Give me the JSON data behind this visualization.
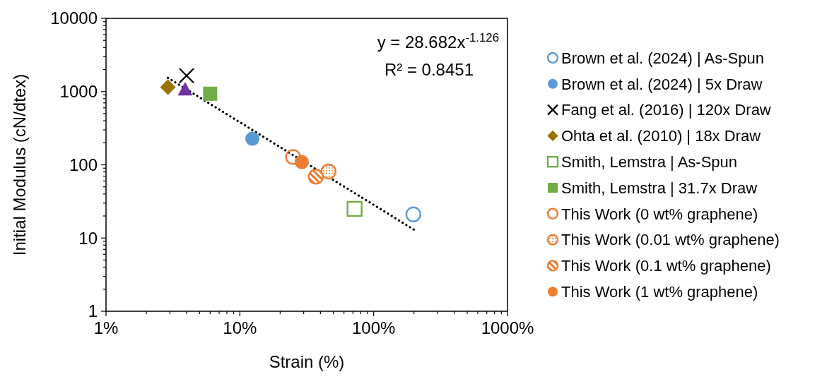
{
  "chart_data": {
    "type": "scatter",
    "xlabel": "Strain (%)",
    "ylabel": "Initial Modulus (cN/dtex)",
    "log": "xy",
    "grid": false,
    "legend": "right",
    "xlim": [
      1,
      1000
    ],
    "ylim": [
      1,
      10000
    ],
    "xticks": [
      {
        "value": 1,
        "label": "1%"
      },
      {
        "value": 2,
        "label": null
      },
      {
        "value": 3,
        "label": null
      },
      {
        "value": 4,
        "label": null
      },
      {
        "value": 5,
        "label": null
      },
      {
        "value": 6,
        "label": null
      },
      {
        "value": 7,
        "label": null
      },
      {
        "value": 8,
        "label": null
      },
      {
        "value": 9,
        "label": null
      },
      {
        "value": 10,
        "label": "10%"
      },
      {
        "value": 20,
        "label": null
      },
      {
        "value": 30,
        "label": null
      },
      {
        "value": 40,
        "label": null
      },
      {
        "value": 50,
        "label": null
      },
      {
        "value": 60,
        "label": null
      },
      {
        "value": 70,
        "label": null
      },
      {
        "value": 80,
        "label": null
      },
      {
        "value": 90,
        "label": null
      },
      {
        "value": 100,
        "label": "100%"
      },
      {
        "value": 200,
        "label": null
      },
      {
        "value": 300,
        "label": null
      },
      {
        "value": 400,
        "label": null
      },
      {
        "value": 500,
        "label": null
      },
      {
        "value": 600,
        "label": null
      },
      {
        "value": 700,
        "label": null
      },
      {
        "value": 800,
        "label": null
      },
      {
        "value": 900,
        "label": null
      },
      {
        "value": 1000,
        "label": "1000%"
      }
    ],
    "yticks": [
      1,
      {
        "value": 2,
        "label": null
      },
      {
        "value": 3,
        "label": null
      },
      {
        "value": 4,
        "label": null
      },
      {
        "value": 5,
        "label": null
      },
      {
        "value": 6,
        "label": null
      },
      {
        "value": 7,
        "label": null
      },
      {
        "value": 8,
        "label": null
      },
      {
        "value": 9,
        "label": null
      },
      10,
      {
        "value": 20,
        "label": null
      },
      {
        "value": 30,
        "label": null
      },
      {
        "value": 40,
        "label": null
      },
      {
        "value": 50,
        "label": null
      },
      {
        "value": 60,
        "label": null
      },
      {
        "value": 70,
        "label": null
      },
      {
        "value": 80,
        "label": null
      },
      {
        "value": 90,
        "label": null
      },
      100,
      {
        "value": 200,
        "label": null
      },
      {
        "value": 300,
        "label": null
      },
      {
        "value": 400,
        "label": null
      },
      {
        "value": 500,
        "label": null
      },
      {
        "value": 600,
        "label": null
      },
      {
        "value": 700,
        "label": null
      },
      {
        "value": 800,
        "label": null
      },
      {
        "value": 900,
        "label": null
      },
      1000,
      {
        "value": 2000,
        "label": null
      },
      {
        "value": 3000,
        "label": null
      },
      {
        "value": 4000,
        "label": null
      },
      {
        "value": 5000,
        "label": null
      },
      {
        "value": 6000,
        "label": null
      },
      {
        "value": 7000,
        "label": null
      },
      {
        "value": 8000,
        "label": null
      },
      {
        "value": 9000,
        "label": null
      },
      10000
    ],
    "annotations": [
      "y = 28.682x$^{-1.126}$",
      "R² = 0.8451"
    ],
    "series": [
      {
        "type": "line",
        "color": "#000000",
        "line_style": "dotted",
        "x": [
          2.9,
          200
        ],
        "values": [
          1540,
          13
        ]
      },
      {
        "color": "#7030a0",
        "marker": "triangle",
        "x": [
          3.9
        ],
        "values": [
          1050
        ]
      },
      {
        "name": "Brown et al. (2024) | As-Spun",
        "color": "#5b9bd5",
        "marker": "circle",
        "x": [
          198
        ],
        "values": [
          21
        ]
      },
      {
        "name": "Brown et al. (2024) | 5x Draw",
        "color": "#5b9bd5",
        "marker": "circle",
        "x": [
          12.4
        ],
        "values": [
          227
        ]
      },
      {
        "name": "Fang et al. (2016) | 120x Draw",
        "color": "#000000",
        "marker": "cross",
        "x": [
          4.0
        ],
        "values": [
          1650
        ]
      },
      {
        "name": "Ohta et al. (2010) | 18x Draw",
        "color": "#997300",
        "marker": "diamond",
        "x": [
          2.9
        ],
        "values": [
          1150
        ]
      },
      {
        "name": "Smith, Lemstra | As-Spun",
        "color": "#70ad47",
        "marker": "square",
        "x": [
          72
        ],
        "values": [
          25
        ]
      },
      {
        "name": "Smith, Lemstra | 31.7x Draw",
        "color": "#70ad47",
        "marker": "square",
        "x": [
          6.0
        ],
        "values": [
          935
        ]
      },
      {
        "name": "This Work (0 wt% graphene)",
        "color": "#ed7d31",
        "marker": "circle",
        "x": [
          25
        ],
        "values": [
          128
        ]
      },
      {
        "name": "This Work (0.01 wt% graphene)",
        "color": "#ed7d31",
        "marker": "circle",
        "x": [
          46
        ],
        "values": [
          81
        ]
      },
      {
        "name": "This Work (0.1 wt% graphene)",
        "color": "#ed7d31",
        "marker": "circle",
        "x": [
          37
        ],
        "values": [
          69
        ]
      },
      {
        "name": "This Work (1 wt% graphene)",
        "color": "#ed7d31",
        "marker": "circle",
        "x": [
          29
        ],
        "values": [
          109
        ]
      }
    ]
  }
}
